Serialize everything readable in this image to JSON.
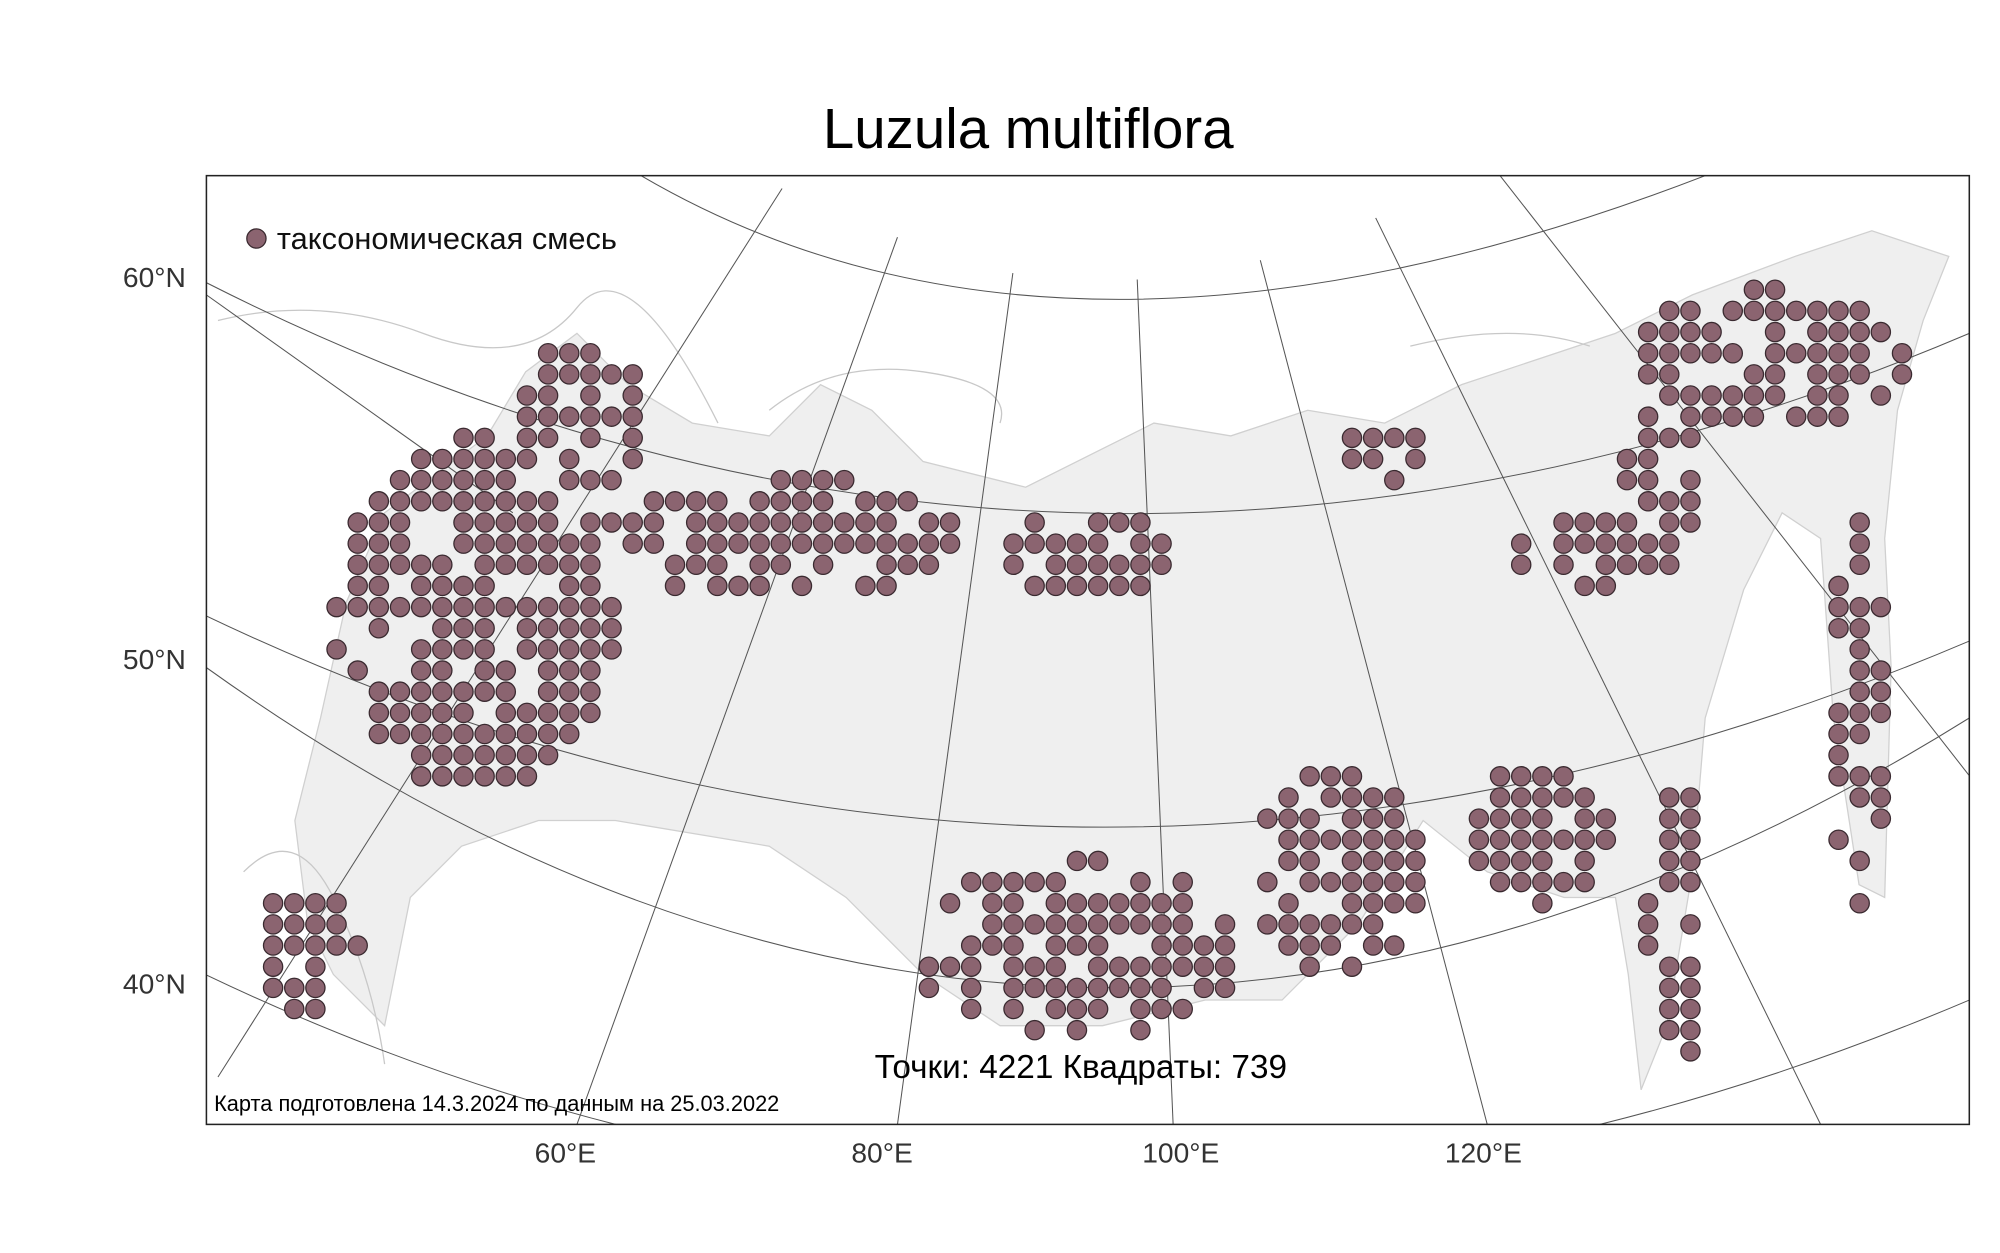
{
  "title": "Luzula multiflora",
  "legend": {
    "label": "таксономическая смесь"
  },
  "axes": {
    "lat_labels": [
      "60°N",
      "50°N",
      "40°N"
    ],
    "lon_labels": [
      "60°E",
      "80°E",
      "100°E",
      "120°E"
    ]
  },
  "stats": "Точки: 4221 Квадраты: 739",
  "credit": "Карта подготовлена 14.3.2024 по данным на 25.03.2022"
}
